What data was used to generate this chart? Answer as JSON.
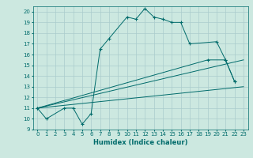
{
  "xlabel": "Humidex (Indice chaleur)",
  "bg_color": "#cce8e0",
  "line_color": "#006b6b",
  "grid_color": "#aacccc",
  "xlim": [
    -0.5,
    23.5
  ],
  "ylim": [
    9,
    20.5
  ],
  "yticks": [
    9,
    10,
    11,
    12,
    13,
    14,
    15,
    16,
    17,
    18,
    19,
    20
  ],
  "xticks": [
    0,
    1,
    2,
    3,
    4,
    5,
    6,
    7,
    8,
    9,
    10,
    11,
    12,
    13,
    14,
    15,
    16,
    17,
    18,
    19,
    20,
    21,
    22,
    23
  ],
  "series1": [
    [
      0,
      11
    ],
    [
      1,
      10
    ],
    [
      3,
      11
    ],
    [
      4,
      11
    ],
    [
      5,
      9.5
    ],
    [
      6,
      10.5
    ],
    [
      7,
      16.5
    ],
    [
      8,
      17.5
    ],
    [
      10,
      19.5
    ],
    [
      11,
      19.3
    ],
    [
      12,
      20.3
    ],
    [
      13,
      19.5
    ],
    [
      14,
      19.3
    ],
    [
      15,
      19
    ],
    [
      16,
      19
    ],
    [
      17,
      17
    ],
    [
      20,
      17.2
    ],
    [
      21,
      15.5
    ],
    [
      22,
      13.5
    ]
  ],
  "line2": [
    [
      0,
      11
    ],
    [
      23,
      13
    ]
  ],
  "line3": [
    [
      0,
      11
    ],
    [
      23,
      15.5
    ]
  ],
  "line4": [
    [
      0,
      11
    ],
    [
      19,
      15.5
    ],
    [
      21,
      15.5
    ],
    [
      22,
      13.5
    ]
  ]
}
